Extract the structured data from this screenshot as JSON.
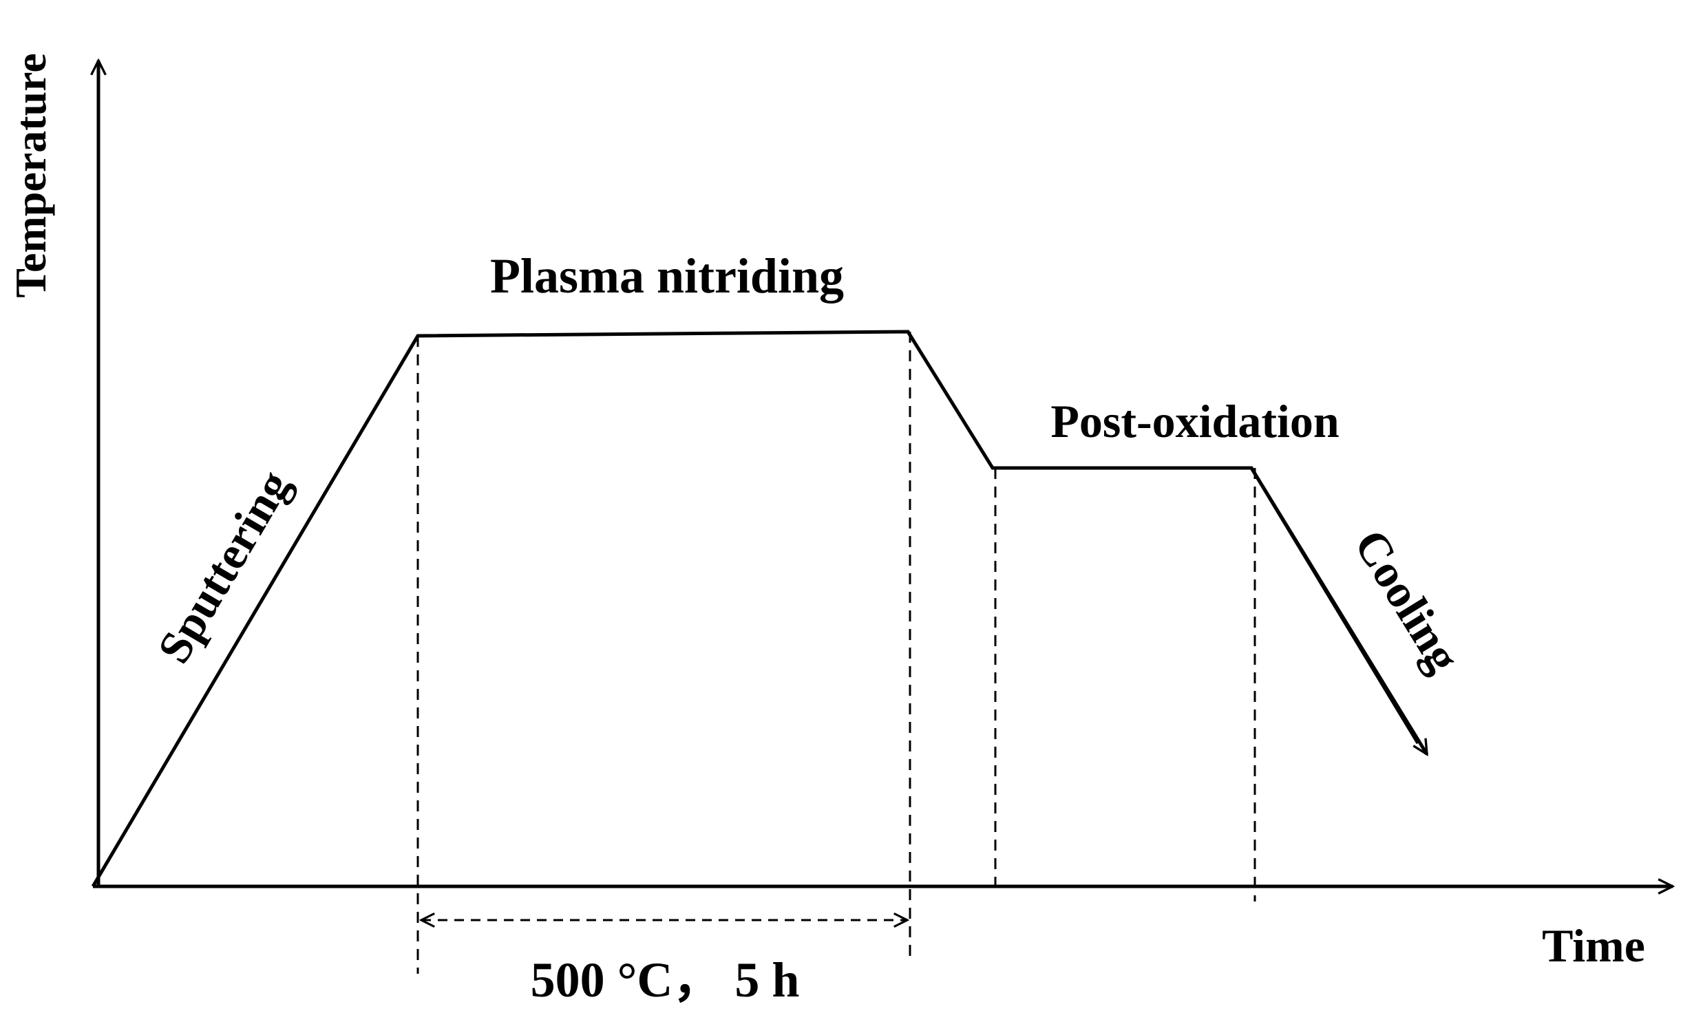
{
  "diagram": {
    "axes": {
      "y_label": "Temperature",
      "x_label": "Time"
    },
    "stages": {
      "sputtering": "Sputtering",
      "plasma_nitriding": "Plasma nitriding",
      "post_oxidation": "Post-oxidation",
      "cooling": "Cooling"
    },
    "nitriding_condition": "500 °C， 5 h"
  }
}
